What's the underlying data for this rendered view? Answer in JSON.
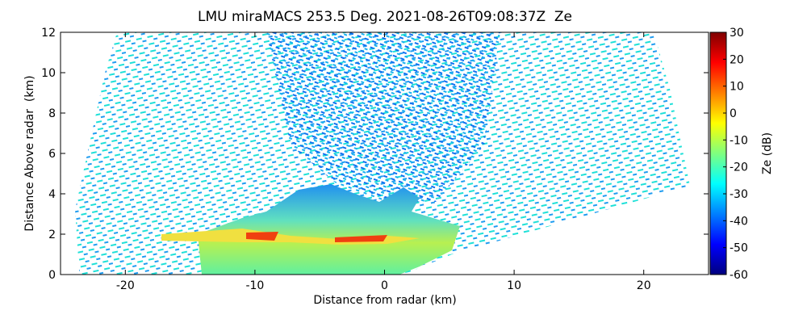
{
  "chart_data": {
    "type": "heatmap",
    "title": "LMU miraMACS 253.5 Deg. 2021-08-26T09:08:37Z  Ze",
    "x_label": "Distance from radar (km)",
    "y_label": "Distance Above radar  (km)",
    "xlim": [
      -25,
      25
    ],
    "xticks": [
      -20,
      -10,
      0,
      10,
      20
    ],
    "ylim": [
      0,
      12
    ],
    "yticks": [
      0,
      2,
      4,
      6,
      8,
      10,
      12
    ],
    "colorbar": {
      "label": "Ze (dB)",
      "colormap": "jet",
      "lim": [
        -60,
        30
      ],
      "ticks": [
        -60,
        -50,
        -40,
        -30,
        -20,
        -10,
        0,
        10,
        20,
        30
      ]
    }
  }
}
